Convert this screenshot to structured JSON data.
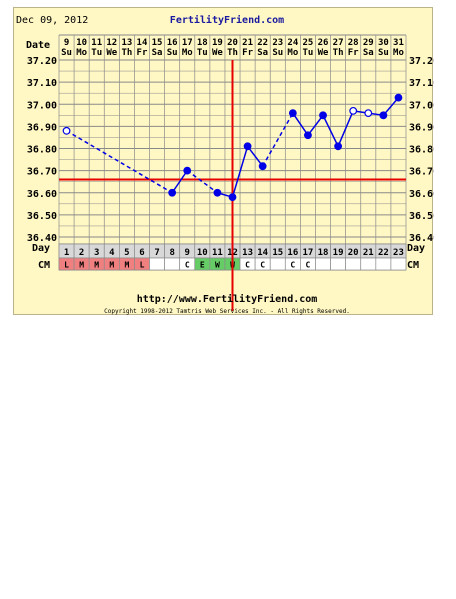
{
  "header": {
    "date": "Dec 09, 2012",
    "site": "FertilityFriend.com",
    "date_row_label": "Date",
    "day_row_label": "Day",
    "cm_row_label": "CM"
  },
  "footer": {
    "url": "http://www.FertilityFriend.com",
    "copyright": "Copyright 1998-2012 Tamtris Web Services Inc. - All Rights Reserved."
  },
  "colors": {
    "background": "#fff7c4",
    "grid": "#8a8a8a",
    "series": "#0000e6",
    "coverline": "#e60000",
    "ovulation_line": "#e60000",
    "cm_L": "#f08080",
    "cm_M": "#f08080",
    "cm_E": "#66cc66",
    "cm_W": "#66cc66"
  },
  "chart_data": {
    "type": "line",
    "title": "",
    "xlabel": "",
    "ylabel": "",
    "ylim": [
      36.4,
      37.2
    ],
    "yticks": [
      "37.20",
      "37.10",
      "37.00",
      "36.90",
      "36.80",
      "36.70",
      "36.60",
      "36.50",
      "36.40"
    ],
    "dates": [
      "9",
      "10",
      "11",
      "12",
      "13",
      "14",
      "15",
      "16",
      "17",
      "18",
      "19",
      "20",
      "21",
      "22",
      "23",
      "24",
      "25",
      "26",
      "27",
      "28",
      "29",
      "30",
      "31"
    ],
    "weekdays": [
      "Su",
      "Mo",
      "Tu",
      "We",
      "Th",
      "Fr",
      "Sa",
      "Su",
      "Mo",
      "Tu",
      "We",
      "Th",
      "Fr",
      "Sa",
      "Su",
      "Mo",
      "Tu",
      "We",
      "Th",
      "Fr",
      "Sa",
      "Su",
      "Mo"
    ],
    "days": [
      1,
      2,
      3,
      4,
      5,
      6,
      7,
      8,
      9,
      10,
      11,
      12,
      13,
      14,
      15,
      16,
      17,
      18,
      19,
      20,
      21,
      22,
      23
    ],
    "cervical_mucus": [
      "L",
      "M",
      "M",
      "M",
      "M",
      "L",
      "",
      "",
      "C",
      "E",
      "W",
      "W",
      "C",
      "C",
      "",
      "C",
      "C",
      "",
      "",
      "",
      "",
      "",
      ""
    ],
    "coverline": 36.66,
    "ovulation_day": 12,
    "series": [
      {
        "values": [
          36.88,
          null,
          null,
          null,
          null,
          null,
          null,
          36.6,
          36.7,
          null,
          36.6,
          36.58,
          36.81,
          36.72,
          null,
          36.96,
          36.86,
          36.95,
          36.81,
          36.97,
          36.96,
          36.95,
          37.03
        ],
        "open_points": [
          1,
          20,
          21
        ],
        "dashed_segments": [
          [
            1,
            8
          ],
          [
            9,
            11
          ],
          [
            14,
            16
          ]
        ]
      }
    ]
  }
}
